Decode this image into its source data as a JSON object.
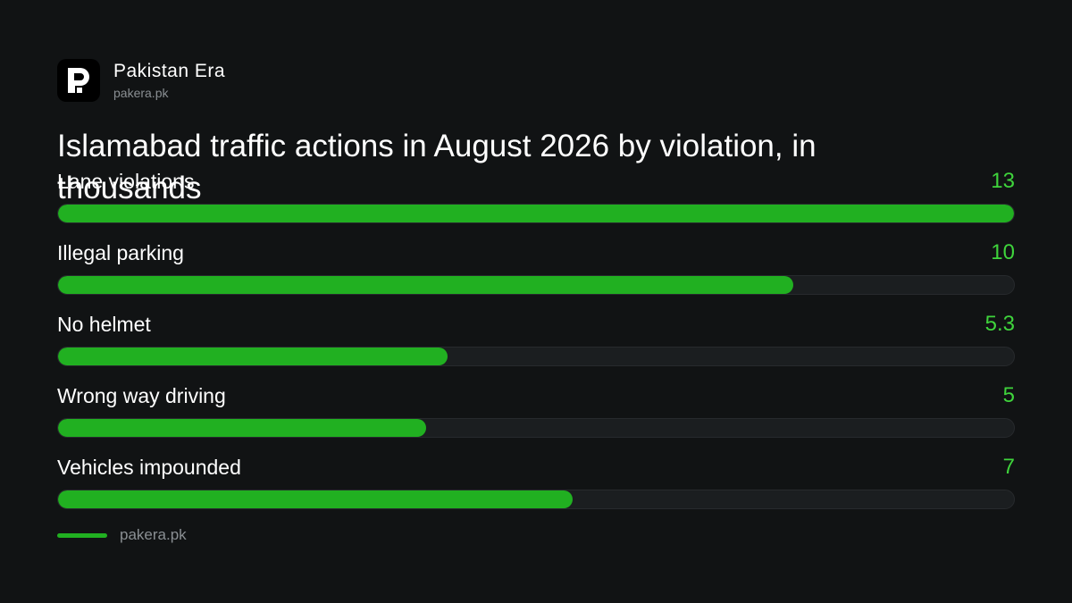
{
  "brand": {
    "name": "Pakistan Era",
    "url": "pakera.pk"
  },
  "colors": {
    "accent": "#21b021",
    "value_text": "#3fd43c",
    "background": "#111314",
    "track": "#1b1e20"
  },
  "chart_data": {
    "type": "bar",
    "orientation": "horizontal",
    "title": "Islamabad traffic actions in August 2026 by violation, in thousands",
    "categories": [
      "Lane violations",
      "Illegal parking",
      "No helmet",
      "Wrong way driving",
      "Vehicles impounded"
    ],
    "values": [
      13,
      10,
      5.3,
      5,
      7
    ],
    "value_labels": [
      "13",
      "10",
      "5.3",
      "5",
      "7"
    ],
    "xlim": [
      0,
      13
    ],
    "grid": false,
    "legend": "none"
  },
  "footer": {
    "source": "pakera.pk"
  }
}
